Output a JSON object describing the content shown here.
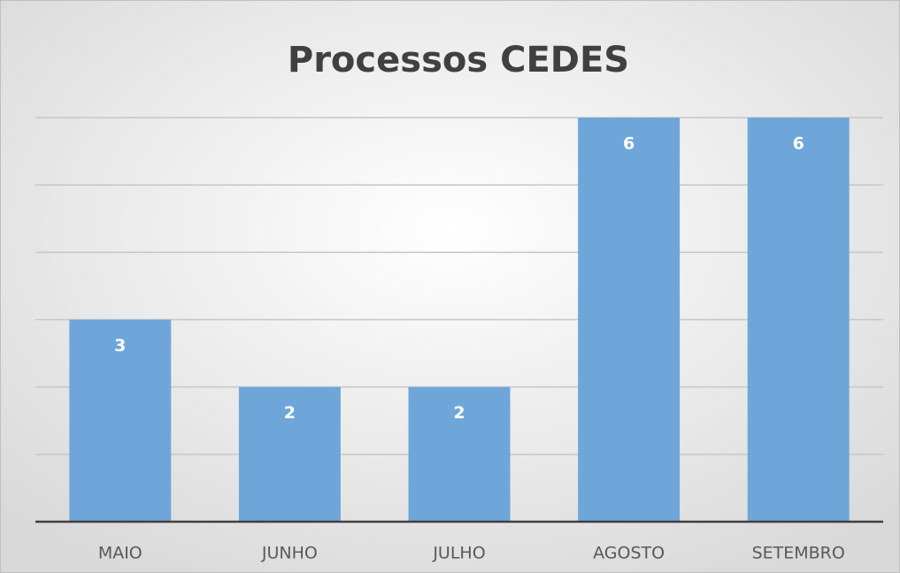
{
  "chart_data": {
    "type": "bar",
    "title": "Processos CEDES",
    "categories": [
      "MAIO",
      "JUNHO",
      "JULHO",
      "AGOSTO",
      "SETEMBRO"
    ],
    "values": [
      3,
      2,
      2,
      6,
      6
    ],
    "color": "#6fa6da",
    "ylim": [
      0,
      6
    ],
    "yticks": [
      0,
      1,
      2,
      3,
      4,
      5,
      6
    ],
    "grid": true
  }
}
